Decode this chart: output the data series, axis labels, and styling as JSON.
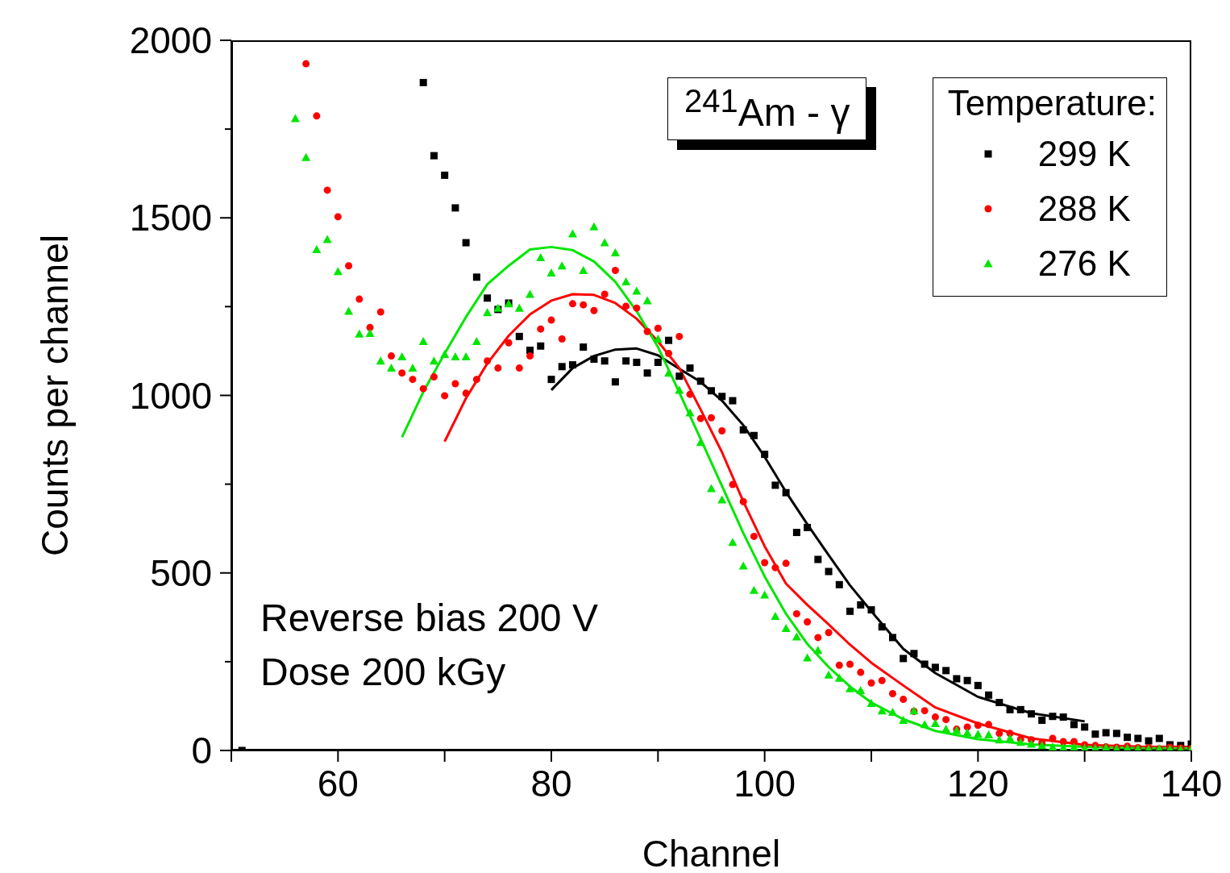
{
  "chart_data": {
    "type": "scatter",
    "xlabel": "Channel",
    "ylabel": "Counts per channel",
    "legend_title": "Temperature:",
    "xlim": [
      50,
      140
    ],
    "xticks": [
      {
        "value": 50,
        "label": null
      },
      60,
      {
        "value": 70,
        "label": null
      },
      80,
      {
        "value": 90,
        "label": null
      },
      100,
      {
        "value": 110,
        "label": null
      },
      120,
      {
        "value": 130,
        "label": null
      },
      140
    ],
    "ylim": [
      0,
      2000
    ],
    "yticks": [
      0,
      {
        "value": 250,
        "label": null
      },
      500,
      {
        "value": 750,
        "label": null
      },
      1000,
      {
        "value": 1250,
        "label": null
      },
      1500,
      {
        "value": 1750,
        "label": null
      },
      2000
    ],
    "grid": false,
    "legend": "top right",
    "annotations": [
      "$^{241}$Am - γ",
      "Reverse bias 200 V",
      "Dose 200 kGy"
    ],
    "series": [
      {
        "name": "299 K",
        "color": "#000000",
        "marker": "square",
        "x": [
          51,
          68,
          69,
          70,
          71,
          72,
          73,
          74,
          75,
          76,
          77,
          78,
          79,
          80,
          81,
          82,
          83,
          84,
          85,
          86,
          87,
          88,
          89,
          90,
          91,
          92,
          93,
          94,
          95,
          96,
          97,
          98,
          99,
          100,
          101,
          102,
          103,
          104,
          105,
          106,
          107,
          108,
          109,
          110,
          111,
          112,
          113,
          114,
          115,
          116,
          117,
          118,
          119,
          120,
          121,
          122,
          123,
          124,
          125,
          126,
          127,
          128,
          129,
          130,
          131,
          132,
          133,
          134,
          135,
          136,
          137,
          138,
          139,
          140
        ],
        "values": [
          0,
          1881,
          1675,
          1620,
          1528,
          1430,
          1333,
          1274,
          1242,
          1260,
          1166,
          1127,
          1139,
          1045,
          1081,
          1086,
          1136,
          1102,
          1097,
          1038,
          1097,
          1093,
          1063,
          1093,
          1155,
          1054,
          1077,
          1040,
          1013,
          997,
          985,
          903,
          887,
          834,
          747,
          726,
          614,
          628,
          538,
          504,
          467,
          392,
          410,
          396,
          348,
          318,
          259,
          273,
          243,
          234,
          225,
          202,
          197,
          183,
          156,
          135,
          115,
          115,
          103,
          85,
          96,
          94,
          73,
          66,
          46,
          50,
          48,
          37,
          34,
          27,
          34,
          16,
          14,
          18
        ]
      },
      {
        "name": "288 K",
        "color": "#ff0000",
        "marker": "circle",
        "x": [
          57,
          58,
          59,
          60,
          61,
          62,
          63,
          64,
          65,
          66,
          67,
          68,
          69,
          70,
          71,
          72,
          73,
          74,
          75,
          76,
          77,
          78,
          79,
          80,
          81,
          82,
          83,
          84,
          85,
          86,
          87,
          88,
          89,
          90,
          91,
          92,
          93,
          94,
          95,
          96,
          97,
          98,
          99,
          100,
          101,
          102,
          103,
          104,
          105,
          106,
          107,
          108,
          109,
          110,
          111,
          112,
          113,
          114,
          115,
          116,
          117,
          118,
          119,
          120,
          121,
          122,
          123,
          124,
          125,
          126,
          127,
          128,
          129,
          130,
          131,
          132,
          133,
          134,
          135,
          136,
          137,
          138,
          139,
          140
        ],
        "values": [
          1934,
          1787,
          1578,
          1503,
          1365,
          1271,
          1191,
          1235,
          1111,
          1063,
          1045,
          1019,
          1052,
          999,
          1033,
          1006,
          1045,
          1097,
          1077,
          1148,
          1077,
          1111,
          1187,
          1212,
          1159,
          1258,
          1255,
          1239,
          1285,
          1352,
          1251,
          1246,
          1180,
          1189,
          1118,
          1166,
          1003,
          935,
          937,
          900,
          749,
          701,
          603,
          529,
          515,
          527,
          385,
          362,
          318,
          332,
          240,
          243,
          220,
          190,
          197,
          160,
          144,
          110,
          112,
          94,
          87,
          60,
          66,
          71,
          73,
          48,
          48,
          32,
          30,
          21,
          34,
          25,
          25,
          16,
          14,
          10,
          9,
          12,
          8,
          8,
          5,
          9,
          7,
          5
        ]
      },
      {
        "name": "276 K",
        "color": "#00e600",
        "marker": "triangle",
        "x": [
          56,
          57,
          58,
          59,
          60,
          61,
          62,
          63,
          64,
          65,
          66,
          67,
          68,
          69,
          70,
          71,
          72,
          73,
          74,
          75,
          76,
          77,
          78,
          79,
          80,
          81,
          82,
          83,
          84,
          85,
          86,
          87,
          88,
          89,
          90,
          91,
          92,
          93,
          94,
          95,
          96,
          97,
          98,
          99,
          100,
          101,
          102,
          103,
          104,
          105,
          106,
          107,
          108,
          109,
          110,
          111,
          112,
          113,
          114,
          115,
          116,
          117,
          118,
          119,
          120,
          121,
          122,
          123,
          124,
          125,
          126,
          127,
          128,
          129,
          130,
          131,
          132,
          133,
          134,
          135,
          136,
          137,
          138,
          139,
          140
        ],
        "values": [
          1780,
          1670,
          1411,
          1439,
          1349,
          1237,
          1173,
          1175,
          1097,
          1077,
          1109,
          1077,
          1152,
          1097,
          1116,
          1109,
          1109,
          1152,
          1233,
          1246,
          1258,
          1246,
          1285,
          1388,
          1345,
          1365,
          1455,
          1352,
          1475,
          1430,
          1402,
          1320,
          1294,
          1267,
          1159,
          1063,
          1015,
          951,
          868,
          738,
          706,
          586,
          520,
          451,
          438,
          378,
          344,
          320,
          261,
          282,
          213,
          204,
          174,
          169,
          133,
          112,
          108,
          85,
          112,
          73,
          76,
          60,
          57,
          50,
          46,
          44,
          30,
          34,
          23,
          18,
          14,
          10,
          8,
          9,
          7,
          6,
          8,
          5,
          6,
          5,
          4,
          5,
          4,
          3,
          4
        ]
      },
      {
        "type": "line",
        "color": "#000000",
        "marker": "none",
        "line_style": "solid",
        "x": [
          80,
          82,
          84,
          86,
          88,
          90,
          92,
          94,
          96,
          98,
          100,
          102,
          104,
          106,
          108,
          110,
          113,
          116,
          120,
          125,
          130
        ],
        "values": [
          1015,
          1077,
          1111,
          1129,
          1132,
          1113,
          1075,
          1038,
          985,
          916,
          827,
          728,
          637,
          550,
          465,
          392,
          286,
          218,
          151,
          105,
          82
        ]
      },
      {
        "type": "line",
        "color": "#ff0000",
        "marker": "none",
        "line_style": "solid",
        "x": [
          70,
          72,
          74,
          76,
          78,
          80,
          82,
          84,
          86,
          88,
          90,
          92,
          94,
          96,
          98,
          100,
          102,
          104,
          106,
          108,
          110,
          113,
          116,
          120,
          125,
          130,
          135,
          140
        ],
        "values": [
          870,
          992,
          1090,
          1168,
          1228,
          1267,
          1285,
          1283,
          1260,
          1216,
          1152,
          1077,
          960,
          840,
          701,
          575,
          470,
          410,
          355,
          298,
          247,
          183,
          121,
          76,
          34,
          16,
          11,
          10
        ]
      },
      {
        "type": "line",
        "color": "#00e600",
        "marker": "none",
        "line_style": "solid",
        "x": [
          66,
          68,
          70,
          72,
          74,
          76,
          78,
          80,
          82,
          84,
          86,
          88,
          90,
          92,
          94,
          96,
          98,
          100,
          102,
          104,
          106,
          108,
          110,
          113,
          116,
          120,
          125,
          130,
          135,
          140
        ],
        "values": [
          882,
          1010,
          1118,
          1221,
          1313,
          1365,
          1411,
          1418,
          1409,
          1377,
          1320,
          1237,
          1136,
          1008,
          877,
          745,
          612,
          490,
          385,
          300,
          235,
          180,
          135,
          88,
          55,
          32,
          17,
          10,
          7,
          6
        ]
      }
    ]
  }
}
